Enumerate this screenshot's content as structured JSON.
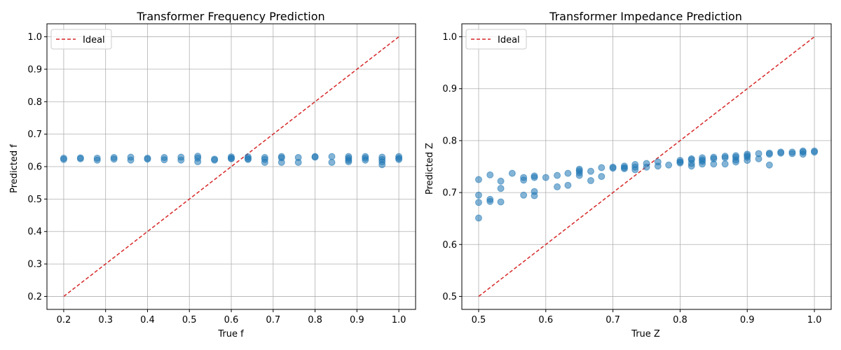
{
  "chart_data": [
    {
      "type": "scatter",
      "title": "Transformer Frequency Prediction",
      "xlabel": "True f",
      "ylabel": "Predicted f",
      "xlim": [
        0.16,
        1.04
      ],
      "ylim": [
        0.16,
        1.04
      ],
      "xticks": [
        "0.2",
        "0.3",
        "0.4",
        "0.5",
        "0.6",
        "0.7",
        "0.8",
        "0.9",
        "1.0"
      ],
      "yticks": [
        "0.2",
        "0.3",
        "0.4",
        "0.5",
        "0.6",
        "0.7",
        "0.8",
        "0.9",
        "1.0"
      ],
      "grid": true,
      "legend": {
        "position": "top-left",
        "entries": [
          "Ideal"
        ]
      },
      "ideal_line": {
        "label": "Ideal",
        "from": [
          0.2,
          0.2
        ],
        "to": [
          1.0,
          1.0
        ],
        "color": "#d62728",
        "style": "dashed"
      },
      "point_color": "#1f77b4",
      "points": [
        [
          0.2,
          0.626
        ],
        [
          0.2,
          0.622
        ],
        [
          0.24,
          0.627
        ],
        [
          0.24,
          0.624
        ],
        [
          0.28,
          0.626
        ],
        [
          0.28,
          0.62
        ],
        [
          0.32,
          0.628
        ],
        [
          0.32,
          0.623
        ],
        [
          0.36,
          0.629
        ],
        [
          0.36,
          0.62
        ],
        [
          0.4,
          0.626
        ],
        [
          0.4,
          0.623
        ],
        [
          0.44,
          0.628
        ],
        [
          0.44,
          0.621
        ],
        [
          0.48,
          0.629
        ],
        [
          0.48,
          0.62
        ],
        [
          0.52,
          0.632
        ],
        [
          0.52,
          0.626
        ],
        [
          0.52,
          0.615
        ],
        [
          0.56,
          0.623
        ],
        [
          0.56,
          0.62
        ],
        [
          0.6,
          0.63
        ],
        [
          0.6,
          0.626
        ],
        [
          0.6,
          0.624
        ],
        [
          0.64,
          0.63
        ],
        [
          0.64,
          0.625
        ],
        [
          0.64,
          0.622
        ],
        [
          0.68,
          0.628
        ],
        [
          0.68,
          0.622
        ],
        [
          0.68,
          0.613
        ],
        [
          0.72,
          0.631
        ],
        [
          0.72,
          0.627
        ],
        [
          0.72,
          0.613
        ],
        [
          0.76,
          0.628
        ],
        [
          0.76,
          0.613
        ],
        [
          0.8,
          0.631
        ],
        [
          0.8,
          0.629
        ],
        [
          0.84,
          0.631
        ],
        [
          0.84,
          0.613
        ],
        [
          0.88,
          0.631
        ],
        [
          0.88,
          0.626
        ],
        [
          0.88,
          0.62
        ],
        [
          0.88,
          0.615
        ],
        [
          0.92,
          0.631
        ],
        [
          0.92,
          0.626
        ],
        [
          0.92,
          0.62
        ],
        [
          0.96,
          0.629
        ],
        [
          0.96,
          0.622
        ],
        [
          0.96,
          0.615
        ],
        [
          0.96,
          0.606
        ],
        [
          1.0,
          0.631
        ],
        [
          1.0,
          0.626
        ],
        [
          1.0,
          0.622
        ]
      ]
    },
    {
      "type": "scatter",
      "title": "Transformer Impedance Prediction",
      "xlabel": "True Z",
      "ylabel": "Predicted Z",
      "xlim": [
        0.475,
        1.025
      ],
      "ylim": [
        0.475,
        1.025
      ],
      "xticks": [
        "0.5",
        "0.6",
        "0.7",
        "0.8",
        "0.9",
        "1.0"
      ],
      "yticks": [
        "0.5",
        "0.6",
        "0.7",
        "0.8",
        "0.9",
        "1.0"
      ],
      "grid": true,
      "legend": {
        "position": "top-left",
        "entries": [
          "Ideal"
        ]
      },
      "ideal_line": {
        "label": "Ideal",
        "from": [
          0.5,
          0.5
        ],
        "to": [
          1.0,
          1.0
        ],
        "color": "#d62728",
        "style": "dashed"
      },
      "point_color": "#1f77b4",
      "points": [
        [
          0.5,
          0.725
        ],
        [
          0.5,
          0.695
        ],
        [
          0.5,
          0.681
        ],
        [
          0.5,
          0.651
        ],
        [
          0.517,
          0.734
        ],
        [
          0.517,
          0.687
        ],
        [
          0.517,
          0.683
        ],
        [
          0.533,
          0.722
        ],
        [
          0.533,
          0.708
        ],
        [
          0.533,
          0.682
        ],
        [
          0.55,
          0.737
        ],
        [
          0.567,
          0.729
        ],
        [
          0.567,
          0.724
        ],
        [
          0.567,
          0.695
        ],
        [
          0.583,
          0.732
        ],
        [
          0.583,
          0.729
        ],
        [
          0.583,
          0.702
        ],
        [
          0.583,
          0.694
        ],
        [
          0.6,
          0.729
        ],
        [
          0.617,
          0.733
        ],
        [
          0.617,
          0.711
        ],
        [
          0.633,
          0.737
        ],
        [
          0.633,
          0.714
        ],
        [
          0.65,
          0.745
        ],
        [
          0.65,
          0.742
        ],
        [
          0.65,
          0.738
        ],
        [
          0.65,
          0.733
        ],
        [
          0.667,
          0.741
        ],
        [
          0.667,
          0.723
        ],
        [
          0.683,
          0.748
        ],
        [
          0.683,
          0.731
        ],
        [
          0.7,
          0.749
        ],
        [
          0.7,
          0.747
        ],
        [
          0.717,
          0.751
        ],
        [
          0.717,
          0.748
        ],
        [
          0.717,
          0.746
        ],
        [
          0.733,
          0.754
        ],
        [
          0.733,
          0.749
        ],
        [
          0.733,
          0.744
        ],
        [
          0.75,
          0.756
        ],
        [
          0.75,
          0.749
        ],
        [
          0.767,
          0.759
        ],
        [
          0.767,
          0.751
        ],
        [
          0.783,
          0.753
        ],
        [
          0.8,
          0.762
        ],
        [
          0.8,
          0.759
        ],
        [
          0.8,
          0.757
        ],
        [
          0.817,
          0.765
        ],
        [
          0.817,
          0.763
        ],
        [
          0.817,
          0.756
        ],
        [
          0.817,
          0.751
        ],
        [
          0.833,
          0.767
        ],
        [
          0.833,
          0.763
        ],
        [
          0.833,
          0.76
        ],
        [
          0.833,
          0.755
        ],
        [
          0.85,
          0.768
        ],
        [
          0.85,
          0.765
        ],
        [
          0.85,
          0.755
        ],
        [
          0.867,
          0.77
        ],
        [
          0.867,
          0.767
        ],
        [
          0.867,
          0.755
        ],
        [
          0.883,
          0.771
        ],
        [
          0.883,
          0.768
        ],
        [
          0.883,
          0.763
        ],
        [
          0.883,
          0.759
        ],
        [
          0.9,
          0.774
        ],
        [
          0.9,
          0.771
        ],
        [
          0.9,
          0.768
        ],
        [
          0.9,
          0.762
        ],
        [
          0.917,
          0.775
        ],
        [
          0.917,
          0.765
        ],
        [
          0.933,
          0.776
        ],
        [
          0.933,
          0.774
        ],
        [
          0.933,
          0.753
        ],
        [
          0.95,
          0.778
        ],
        [
          0.95,
          0.776
        ],
        [
          0.967,
          0.778
        ],
        [
          0.967,
          0.775
        ],
        [
          0.983,
          0.78
        ],
        [
          0.983,
          0.778
        ],
        [
          0.983,
          0.774
        ],
        [
          1.0,
          0.78
        ],
        [
          1.0,
          0.778
        ]
      ]
    }
  ]
}
